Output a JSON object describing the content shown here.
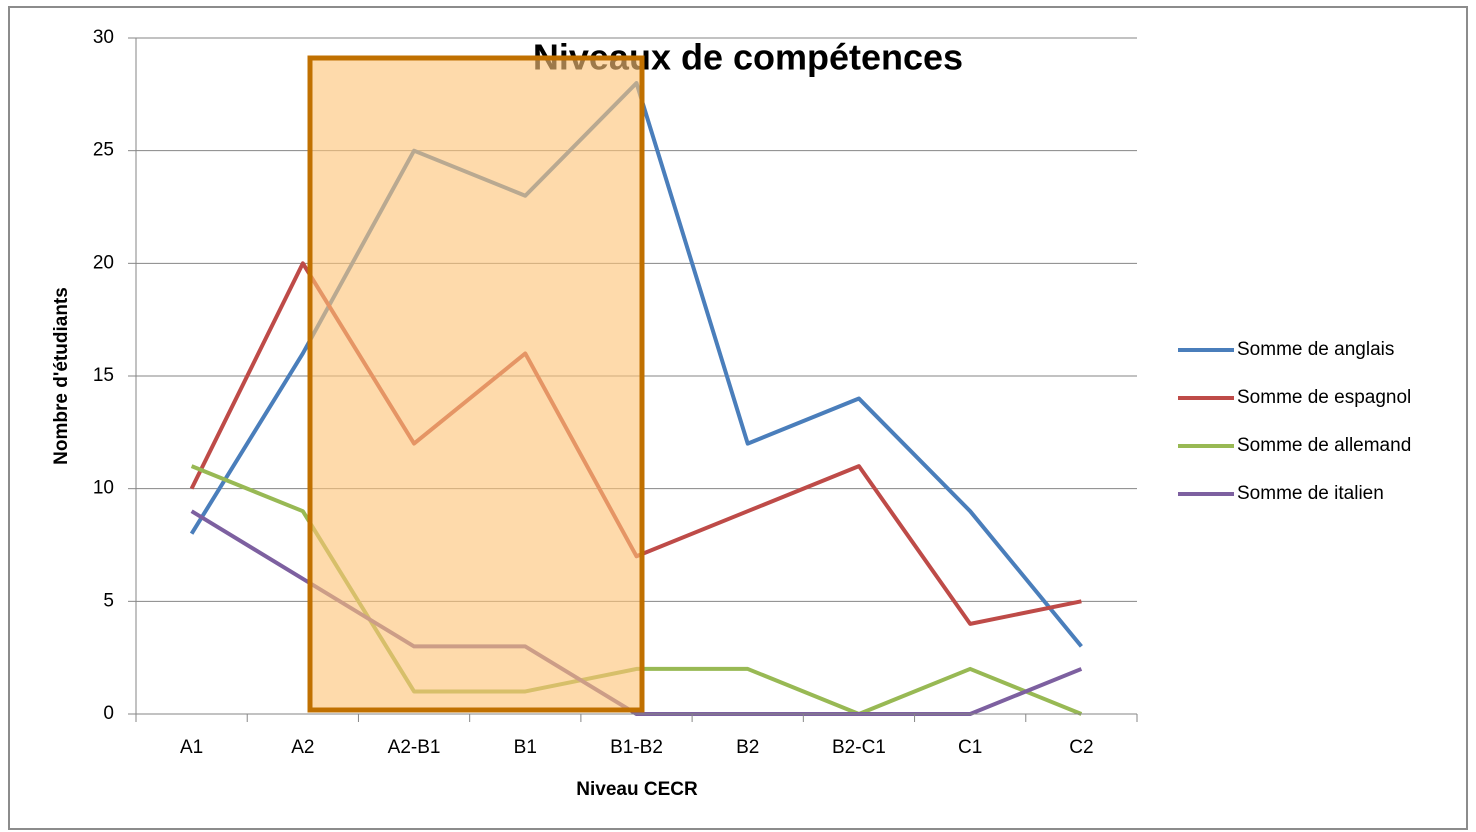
{
  "chart_data": {
    "type": "line",
    "title": "Niveaux de compétences",
    "x_label": "Niveau CECR",
    "y_label": "Nombre d'étudiants",
    "categories": [
      "A1",
      "A2",
      "A2-B1",
      "B1",
      "B1-B2",
      "B2",
      "B2-C1",
      "C1",
      "C2"
    ],
    "series": [
      {
        "name": "Somme de anglais",
        "color": "#4a7ebb",
        "values": [
          8,
          16,
          25,
          23,
          28,
          12,
          14,
          9,
          3
        ]
      },
      {
        "name": "Somme de espagnol",
        "color": "#be4b48",
        "values": [
          10,
          20,
          12,
          16,
          7,
          9,
          11,
          4,
          5
        ]
      },
      {
        "name": "Somme de allemand",
        "color": "#98b954",
        "values": [
          11,
          9,
          1,
          1,
          2,
          2,
          0,
          2,
          0
        ]
      },
      {
        "name": "Somme de italien",
        "color": "#7d60a0",
        "values": [
          9,
          6,
          3,
          3,
          0,
          0,
          0,
          0,
          2
        ]
      }
    ],
    "ylim": [
      0,
      30
    ],
    "yticks": [
      0,
      5,
      10,
      15,
      20,
      25,
      30
    ],
    "grid": true,
    "legend": "right"
  }
}
